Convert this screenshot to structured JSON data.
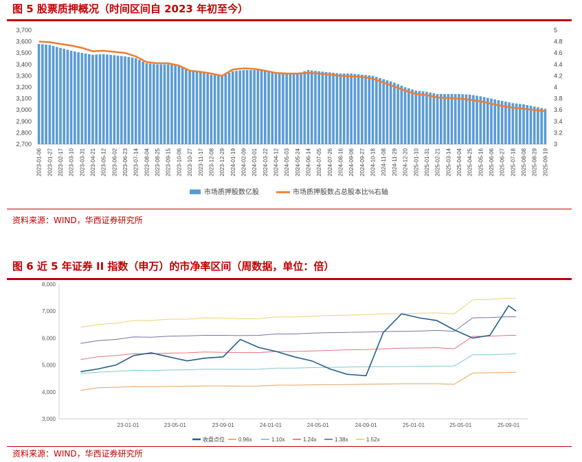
{
  "fig5": {
    "title": "图 5   股票质押概况（时间区间自 2023 年初至今）",
    "source": "资料来源：WIND，华西证券研究所"
  },
  "fig6": {
    "title": "图 6   近 5 年证券 II 指数（申万）的市净率区间（周数据，单位：倍）",
    "source": "资料来源：WIND，华西证券研究所"
  },
  "chart_data": [
    {
      "type": "bar",
      "title": "",
      "xlabel": "",
      "ylabel": "",
      "ylim": [
        2700,
        3700
      ],
      "ylim_right": [
        3,
        5
      ],
      "y_ticks": [
        "2,700",
        "2,800",
        "2,900",
        "3,000",
        "3,100",
        "3,200",
        "3,300",
        "3,400",
        "3,500",
        "3,600",
        "3,700"
      ],
      "y_right_ticks": [
        "3",
        "3.2",
        "3.4",
        "3.6",
        "3.8",
        "4",
        "4.2",
        "4.4",
        "4.6",
        "4.8",
        "5"
      ],
      "categories": [
        "2023-01-06",
        "2023-01-27",
        "2023-02-17",
        "2023-03-10",
        "2023-03-31",
        "2023-04-21",
        "2023-05-12",
        "2023-06-02",
        "2023-06-23",
        "2023-07-14",
        "2023-08-04",
        "2023-08-25",
        "2023-09-15",
        "2023-10-06",
        "2023-10-27",
        "2023-11-17",
        "2023-12-08",
        "2023-12-29",
        "2024-01-19",
        "2024-02-09",
        "2024-03-01",
        "2024-03-22",
        "2024-04-12",
        "2024-05-03",
        "2024-05-24",
        "2024-06-14",
        "2024-07-05",
        "2024-07-26",
        "2024-08-16",
        "2024-09-06",
        "2024-09-27",
        "2024-10-18",
        "2024-11-08",
        "2024-11-29",
        "2024-12-20",
        "2025-01-10",
        "2025-01-31",
        "2025-02-21",
        "2025-03-14",
        "2025-04-04",
        "2025-04-25",
        "2025-05-16",
        "2025-06-06",
        "2025-06-27",
        "2025-07-18",
        "2025-08-08",
        "2025-08-29",
        "2025-09-19"
      ],
      "series": [
        {
          "name": "市场质押股数亿股",
          "type": "bar",
          "axis": "left",
          "color": "#5b9bd5",
          "values": [
            3580,
            3570,
            3545,
            3520,
            3500,
            3485,
            3490,
            3480,
            3470,
            3455,
            3410,
            3400,
            3400,
            3390,
            3340,
            3330,
            3310,
            3300,
            3340,
            3350,
            3350,
            3345,
            3320,
            3320,
            3320,
            3350,
            3340,
            3330,
            3320,
            3320,
            3310,
            3300,
            3270,
            3240,
            3200,
            3170,
            3160,
            3140,
            3140,
            3140,
            3135,
            3120,
            3100,
            3080,
            3060,
            3050,
            3030,
            3010
          ]
        },
        {
          "name": "市场质押股数占总股本比%右轴",
          "type": "line",
          "axis": "right",
          "color": "#ed7d31",
          "values": [
            4.8,
            4.79,
            4.76,
            4.73,
            4.69,
            4.63,
            4.64,
            4.62,
            4.6,
            4.54,
            4.44,
            4.42,
            4.42,
            4.38,
            4.29,
            4.27,
            4.24,
            4.2,
            4.31,
            4.33,
            4.32,
            4.29,
            4.25,
            4.24,
            4.24,
            4.25,
            4.24,
            4.22,
            4.2,
            4.19,
            4.18,
            4.15,
            4.08,
            4.01,
            3.94,
            3.88,
            3.86,
            3.82,
            3.81,
            3.8,
            3.78,
            3.75,
            3.71,
            3.67,
            3.64,
            3.62,
            3.6,
            3.58
          ]
        }
      ],
      "legend_position": "bottom",
      "grid": false
    },
    {
      "type": "line",
      "title": "",
      "xlabel": "",
      "ylabel": "",
      "ylim": [
        3000,
        8000
      ],
      "y_ticks": [
        "3,000",
        "4,000",
        "5,000",
        "6,000",
        "7,000",
        "8,000"
      ],
      "x_ticks": [
        "23-01-01",
        "23-05-01",
        "23-09-01",
        "24-01-01",
        "24-05-01",
        "24-09-01",
        "25-01-01",
        "25-05-01",
        "25-09-01"
      ],
      "x": [
        "2022-09-01",
        "2022-10-15",
        "2022-12-01",
        "2023-01-15",
        "2023-03-01",
        "2023-04-15",
        "2023-06-01",
        "2023-07-15",
        "2023-09-01",
        "2023-10-15",
        "2023-12-01",
        "2024-01-15",
        "2024-03-01",
        "2024-04-15",
        "2024-06-01",
        "2024-07-15",
        "2024-09-01",
        "2024-10-15",
        "2024-12-01",
        "2025-01-15",
        "2025-03-01",
        "2025-04-15",
        "2025-06-01",
        "2025-07-15",
        "2025-09-01",
        "2025-09-20"
      ],
      "series": [
        {
          "name": "收盘点位",
          "color": "#1f5f8b",
          "width": 1.6,
          "values": [
            4750,
            4850,
            5000,
            5350,
            5450,
            5300,
            5150,
            5250,
            5300,
            5950,
            5650,
            5500,
            5300,
            5150,
            4850,
            4650,
            4600,
            6200,
            6900,
            6750,
            6650,
            6300,
            6000,
            6100,
            7200,
            7000
          ]
        },
        {
          "name": "0.96x",
          "color": "#e8a25a",
          "width": 1,
          "values": [
            4050,
            4150,
            4170,
            4200,
            4190,
            4200,
            4210,
            4220,
            4220,
            4215,
            4220,
            4250,
            4250,
            4260,
            4265,
            4270,
            4280,
            4290,
            4300,
            4300,
            4300,
            4280,
            4700,
            4710,
            4720,
            4730
          ]
        },
        {
          "name": "1.10x",
          "color": "#7ec8cf",
          "width": 1,
          "values": [
            4680,
            4730,
            4760,
            4800,
            4790,
            4810,
            4820,
            4840,
            4840,
            4835,
            4840,
            4880,
            4880,
            4900,
            4910,
            4920,
            4930,
            4940,
            4940,
            4950,
            4960,
            4960,
            5380,
            5380,
            5400,
            5420
          ]
        },
        {
          "name": "1.24x",
          "color": "#e8737a",
          "width": 1,
          "values": [
            5200,
            5300,
            5350,
            5420,
            5410,
            5440,
            5450,
            5480,
            5470,
            5460,
            5460,
            5500,
            5500,
            5520,
            5540,
            5560,
            5570,
            5600,
            5620,
            5630,
            5640,
            5600,
            6060,
            6070,
            6100,
            6100
          ]
        },
        {
          "name": "1.38x",
          "color": "#7a6fa8",
          "width": 1,
          "values": [
            5800,
            5900,
            5950,
            6040,
            6030,
            6070,
            6080,
            6100,
            6100,
            6090,
            6100,
            6150,
            6150,
            6180,
            6200,
            6210,
            6220,
            6240,
            6250,
            6260,
            6280,
            6250,
            6750,
            6760,
            6790,
            6790
          ]
        },
        {
          "name": "1.52x",
          "color": "#e8d470",
          "width": 1,
          "values": [
            6400,
            6500,
            6550,
            6650,
            6650,
            6700,
            6700,
            6750,
            6740,
            6720,
            6720,
            6780,
            6780,
            6810,
            6840,
            6850,
            6870,
            6900,
            6900,
            6920,
            6930,
            6900,
            7420,
            7440,
            7480,
            7480
          ]
        }
      ],
      "legend_position": "bottom",
      "grid": false
    }
  ]
}
